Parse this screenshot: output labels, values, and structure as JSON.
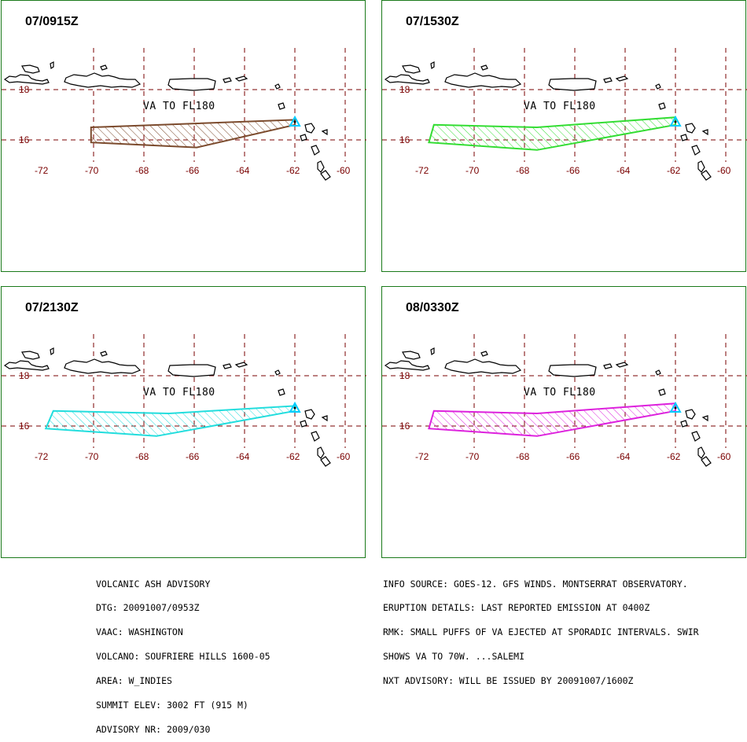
{
  "map": {
    "latitudes": [
      "18",
      "16"
    ],
    "longitudes": [
      "-72",
      "-70",
      "-68",
      "-66",
      "-64",
      "-62",
      "-60"
    ],
    "colors": {
      "grid": "#7a0000",
      "panel_border": "#1a7a1a",
      "volcano_marker": "#00ccff"
    }
  },
  "panels": [
    {
      "time": "07/0915Z",
      "label": "VA TO FL180",
      "color": "#7b4a2c",
      "polygon": [
        [
          -70.1,
          16.5
        ],
        [
          -62.0,
          16.8
        ],
        [
          -62.0,
          16.6
        ],
        [
          -65.9,
          15.7
        ],
        [
          -70.1,
          15.9
        ]
      ]
    },
    {
      "time": "07/1530Z",
      "label": "VA TO FL180",
      "color": "#33dd33",
      "polygon": [
        [
          -71.6,
          16.6
        ],
        [
          -67.5,
          16.5
        ],
        [
          -62.0,
          16.9
        ],
        [
          -62.0,
          16.6
        ],
        [
          -67.5,
          15.6
        ],
        [
          -71.8,
          15.9
        ]
      ]
    },
    {
      "time": "07/2130Z",
      "label": "VA TO FL180",
      "color": "#22dddd",
      "polygon": [
        [
          -71.6,
          16.6
        ],
        [
          -67.0,
          16.5
        ],
        [
          -62.0,
          16.8
        ],
        [
          -62.0,
          16.6
        ],
        [
          -67.5,
          15.6
        ],
        [
          -71.9,
          15.9
        ]
      ]
    },
    {
      "time": "08/0330Z",
      "label": "VA TO FL180",
      "color": "#dd22dd",
      "polygon": [
        [
          -71.6,
          16.6
        ],
        [
          -67.5,
          16.5
        ],
        [
          -62.0,
          16.9
        ],
        [
          -62.0,
          16.6
        ],
        [
          -67.5,
          15.6
        ],
        [
          -71.8,
          15.9
        ]
      ]
    }
  ],
  "advisory": {
    "left_lines": [
      "VOLCANIC ASH ADVISORY",
      "DTG: 20091007/0953Z",
      "VAAC: WASHINGTON",
      "VOLCANO: SOUFRIERE HILLS 1600-05",
      "AREA: W_INDIES",
      "SUMMIT ELEV: 3002 FT (915 M)",
      "ADVISORY NR: 2009/030"
    ],
    "right_lines": [
      "INFO SOURCE: GOES-12. GFS WINDS. MONTSERRAT OBSERVATORY.",
      "ERUPTION DETAILS: LAST REPORTED EMISSION AT 0400Z",
      "RMK: SMALL PUFFS OF VA EJECTED AT SPORADIC INTERVALS. SWIR",
      "SHOWS VA TO 70W. ...SALEMI",
      "NXT ADVISORY: WILL BE ISSUED BY 20091007/1600Z"
    ]
  }
}
